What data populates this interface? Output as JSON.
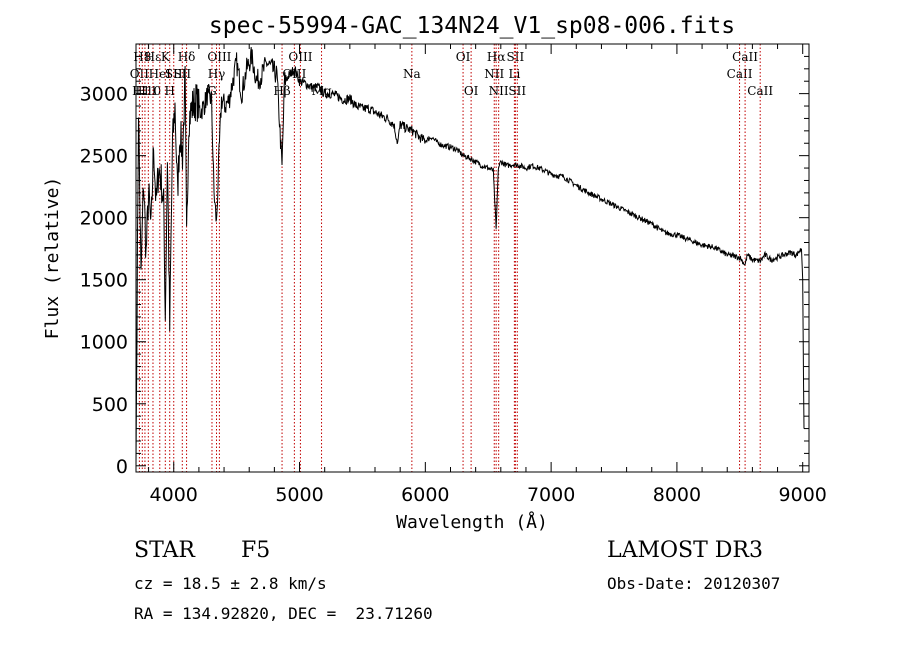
{
  "chart_data": {
    "type": "line",
    "title": "spec-55994-GAC_134N24_V1_sp08-006.fits",
    "xlabel": "Wavelength (Å)",
    "ylabel": "Flux (relative)",
    "xlim": [
      3700,
      9050
    ],
    "ylim": [
      -50,
      3400
    ],
    "xticks": [
      4000,
      5000,
      6000,
      7000,
      8000,
      9000
    ],
    "yticks": [
      0,
      500,
      1000,
      1500,
      2000,
      2500,
      3000
    ],
    "series": [
      {
        "name": "spectrum",
        "x": [
          3700,
          3720,
          3740,
          3760,
          3780,
          3800,
          3820,
          3840,
          3860,
          3880,
          3900,
          3920,
          3933,
          3950,
          3968,
          3990,
          4010,
          4030,
          4050,
          4070,
          4090,
          4102,
          4120,
          4150,
          4180,
          4210,
          4240,
          4270,
          4300,
          4320,
          4340,
          4360,
          4380,
          4410,
          4440,
          4470,
          4500,
          4540,
          4580,
          4620,
          4660,
          4700,
          4740,
          4780,
          4820,
          4861,
          4880,
          4920,
          4960,
          5000,
          5050,
          5100,
          5150,
          5200,
          5250,
          5300,
          5350,
          5400,
          5450,
          5500,
          5550,
          5600,
          5650,
          5700,
          5750,
          5780,
          5800,
          5850,
          5900,
          5950,
          6000,
          6050,
          6100,
          6150,
          6200,
          6250,
          6300,
          6350,
          6400,
          6450,
          6500,
          6540,
          6563,
          6580,
          6600,
          6650,
          6700,
          6750,
          6800,
          6850,
          6900,
          6950,
          7000,
          7100,
          7200,
          7300,
          7400,
          7500,
          7600,
          7700,
          7800,
          7900,
          8000,
          8100,
          8200,
          8300,
          8400,
          8500,
          8542,
          8560,
          8600,
          8662,
          8700,
          8750,
          8800,
          8850,
          8900,
          8950,
          8990,
          9000,
          9010
        ],
        "values": [
          0,
          2900,
          1500,
          2300,
          1700,
          2200,
          1900,
          2600,
          2100,
          2400,
          2300,
          2100,
          1200,
          2500,
          1100,
          2600,
          2900,
          2200,
          2700,
          2500,
          3100,
          1800,
          2800,
          2900,
          2950,
          2850,
          2900,
          3000,
          2950,
          2200,
          1950,
          2500,
          2950,
          2900,
          2950,
          3100,
          3250,
          3000,
          3200,
          3300,
          3100,
          3150,
          3250,
          3200,
          3150,
          2400,
          3100,
          3150,
          3200,
          3100,
          3080,
          3050,
          3050,
          3000,
          3000,
          2980,
          2950,
          2960,
          2900,
          2880,
          2880,
          2850,
          2820,
          2800,
          2750,
          2600,
          2750,
          2720,
          2700,
          2650,
          2620,
          2650,
          2600,
          2580,
          2570,
          2550,
          2500,
          2480,
          2450,
          2420,
          2400,
          2380,
          1900,
          2400,
          2450,
          2420,
          2430,
          2420,
          2400,
          2420,
          2400,
          2380,
          2350,
          2330,
          2260,
          2200,
          2150,
          2100,
          2050,
          2000,
          1950,
          1880,
          1860,
          1820,
          1780,
          1760,
          1700,
          1680,
          1620,
          1700,
          1660,
          1650,
          1700,
          1660,
          1680,
          1700,
          1720,
          1700,
          1750,
          1500,
          300
        ]
      }
    ],
    "line_markers": [
      {
        "x": 3727,
        "label": "OII",
        "row": 2
      },
      {
        "x": 3750,
        "label": "H8",
        "row": 1
      },
      {
        "x": 3771,
        "label": "H11",
        "row": 3
      },
      {
        "x": 3798,
        "label": "H10",
        "row": 3
      },
      {
        "x": 3835,
        "label": "Hε",
        "row": 1
      },
      {
        "x": 3889,
        "label": "HeI",
        "row": 2
      },
      {
        "x": 3933,
        "label": "K",
        "row": 1
      },
      {
        "x": 3968,
        "label": "H",
        "row": 3
      },
      {
        "x": 4000,
        "label": "SII",
        "row": 2
      },
      {
        "x": 4102,
        "label": "Hδ",
        "row": 1
      },
      {
        "x": 4068,
        "label": "SII",
        "row": 2
      },
      {
        "x": 4304,
        "label": "G",
        "row": 3
      },
      {
        "x": 4340,
        "label": "Hγ",
        "row": 2
      },
      {
        "x": 4363,
        "label": "OIII",
        "row": 1
      },
      {
        "x": 4861,
        "label": "Hβ",
        "row": 3
      },
      {
        "x": 4959,
        "label": "OIII",
        "row": 2
      },
      {
        "x": 5007,
        "label": "OIII",
        "row": 1
      },
      {
        "x": 5175,
        "label": "Mg",
        "row": 3
      },
      {
        "x": 5893,
        "label": "Na",
        "row": 2
      },
      {
        "x": 6300,
        "label": "OI",
        "row": 1
      },
      {
        "x": 6364,
        "label": "OI",
        "row": 3
      },
      {
        "x": 6548,
        "label": "NII",
        "row": 2
      },
      {
        "x": 6563,
        "label": "Hα",
        "row": 1
      },
      {
        "x": 6583,
        "label": "NII",
        "row": 3
      },
      {
        "x": 6708,
        "label": "Li",
        "row": 2
      },
      {
        "x": 6716,
        "label": "SII",
        "row": 1
      },
      {
        "x": 6731,
        "label": "SII",
        "row": 3
      },
      {
        "x": 8498,
        "label": "CaII",
        "row": 2
      },
      {
        "x": 8542,
        "label": "CaII",
        "row": 1
      },
      {
        "x": 8662,
        "label": "CaII",
        "row": 3
      }
    ]
  },
  "info": {
    "class": "STAR",
    "subclass": "F5",
    "survey": "LAMOST DR3",
    "cz": "cz = 18.5 ± 2.8 km/s",
    "obs_date": "Obs-Date: 20120307",
    "coords": "RA = 134.92820, DEC =  23.71260"
  },
  "colors": {
    "spectrum": "#000000",
    "marker": "#c00000",
    "axis": "#000000"
  }
}
